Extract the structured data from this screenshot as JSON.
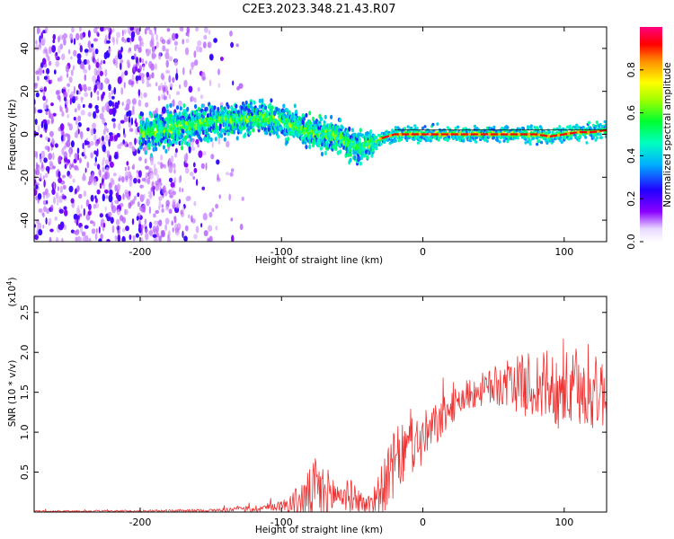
{
  "title": "C2E3.2023.348.21.43.R07",
  "chart_data": [
    {
      "type": "heatmap",
      "xlabel": "Height of straight line (km)",
      "ylabel": "Frequency (Hz)",
      "xlim": [
        -275,
        130
      ],
      "ylim": [
        -50,
        50
      ],
      "xticks": [
        -200,
        -100,
        0,
        100
      ],
      "yticks": [
        -40,
        -20,
        0,
        20,
        40
      ],
      "ridge": {
        "x": [
          -275,
          -200,
          -185,
          -170,
          -150,
          -130,
          -115,
          -100,
          -85,
          -70,
          -60,
          -55,
          -50,
          -45,
          -40,
          -30,
          -20,
          0,
          20,
          40,
          60,
          80,
          90,
          100,
          110,
          120,
          130
        ],
        "y": [
          0,
          0,
          2,
          4,
          6,
          7,
          8,
          6,
          2,
          0,
          -1,
          -3,
          -5,
          -7,
          -5,
          -2,
          0,
          0,
          0,
          0,
          0,
          0,
          -1,
          0,
          1,
          1,
          2
        ]
      },
      "colorbar": {
        "label": "Normalized spectral amplitude",
        "range": [
          0,
          1
        ],
        "ticks": [
          "0.0",
          "0.2",
          "0.4",
          "0.6",
          "0.8"
        ],
        "colors": [
          "#ffffff",
          "#8a00ff",
          "#2200ff",
          "#00b0ff",
          "#00ff60",
          "#a0ff00",
          "#ffff00",
          "#ff9000",
          "#ff0000",
          "#ff0080"
        ]
      }
    },
    {
      "type": "line",
      "xlabel": "Height of straight line (km)",
      "ylabel": "SNR (10 * v/v)",
      "y_multiplier": "(x10",
      "y_multiplier_exp": "4",
      "y_multiplier_close": ")",
      "xlim": [
        -275,
        130
      ],
      "ylim": [
        0,
        2.7
      ],
      "xticks": [
        -200,
        -100,
        0,
        100
      ],
      "yticks": [
        "0.5",
        "1.0",
        "1.5",
        "2.0",
        "2.5"
      ],
      "color": "#ee3333",
      "envelope": {
        "x": [
          -275,
          -200,
          -150,
          -120,
          -100,
          -90,
          -80,
          -75,
          -70,
          -60,
          -50,
          -45,
          -40,
          -30,
          -25,
          -20,
          -10,
          0,
          10,
          20,
          30,
          40,
          50,
          60,
          70,
          80,
          90,
          100,
          110,
          120,
          130
        ],
        "y": [
          0.01,
          0.01,
          0.02,
          0.04,
          0.08,
          0.12,
          0.2,
          0.28,
          0.22,
          0.22,
          0.2,
          0.15,
          0.08,
          0.25,
          0.4,
          0.6,
          0.8,
          0.9,
          1.1,
          1.3,
          1.45,
          1.52,
          1.57,
          1.6,
          1.6,
          1.58,
          1.55,
          1.52,
          1.5,
          1.5,
          1.5
        ]
      },
      "spread": {
        "x": [
          -275,
          -150,
          -100,
          -85,
          -75,
          -60,
          -50,
          -40,
          -30,
          -20,
          -10,
          0,
          20,
          40,
          60,
          80,
          100,
          130
        ],
        "y": [
          0.01,
          0.02,
          0.06,
          0.25,
          0.45,
          0.2,
          0.2,
          0.1,
          0.3,
          0.45,
          0.35,
          0.35,
          0.2,
          0.2,
          0.3,
          0.45,
          0.5,
          0.45
        ]
      }
    }
  ]
}
